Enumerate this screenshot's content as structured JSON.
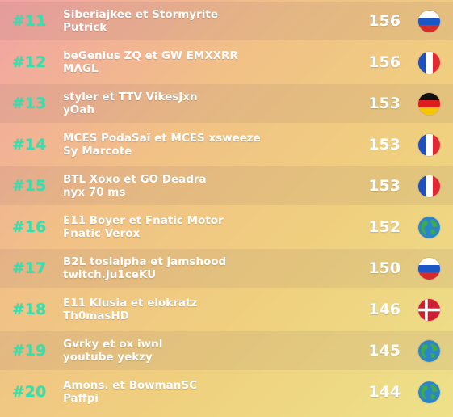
{
  "leaderboard": [
    {
      "rank": "#11",
      "team": "Siberiajkee et Stormyrite",
      "player": "Putrick",
      "points": "156",
      "flag": "russia-flag-icon"
    },
    {
      "rank": "#12",
      "team": "beGenius ZQ et GW EMXXRR",
      "player": "MΛGL",
      "points": "156",
      "flag": "france-flag-icon"
    },
    {
      "rank": "#13",
      "team": "styler et TTV VikesJxn",
      "player": "yOah",
      "points": "153",
      "flag": "germany-flag-icon"
    },
    {
      "rank": "#14",
      "team": "MCES PodaSaï et MCES xsweeze",
      "player": "Sy Marcote",
      "points": "153",
      "flag": "france-flag-icon"
    },
    {
      "rank": "#15",
      "team": "BTL Xoxo et GO Deadra",
      "player": "nyx 70 ms",
      "points": "153",
      "flag": "france-flag-icon"
    },
    {
      "rank": "#16",
      "team": "E11 Boyer et Fnatic Motor",
      "player": "Fnatic Verox",
      "points": "152",
      "flag": "globe-icon"
    },
    {
      "rank": "#17",
      "team": "B2L tosialpha et jamshood",
      "player": "twitch.Ju1ceKU",
      "points": "150",
      "flag": "russia-flag-icon"
    },
    {
      "rank": "#18",
      "team": "E11 Klusia et elokratz",
      "player": "Th0masHD",
      "points": "146",
      "flag": "denmark-flag-icon"
    },
    {
      "rank": "#19",
      "team": "Gvrky et ox iwnl",
      "player": "youtube yekzy",
      "points": "145",
      "flag": "globe-icon"
    },
    {
      "rank": "#20",
      "team": "Amons. et BowmanSC",
      "player": "Paffpi",
      "points": "144",
      "flag": "globe-icon"
    }
  ],
  "colors": {
    "rank": "#2fe3b1",
    "text": "#ffffff"
  }
}
